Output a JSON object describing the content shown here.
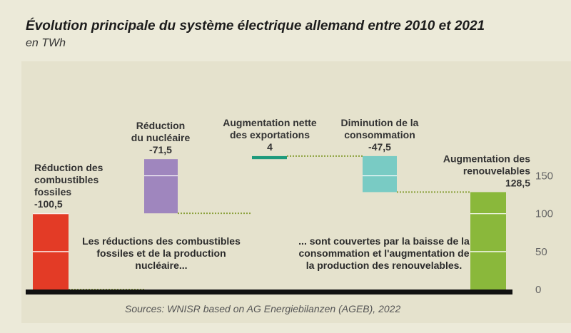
{
  "header": {
    "title": "Évolution principale du système électrique allemand entre 2010 et 2021",
    "subtitle": "en TWh"
  },
  "chart_data": {
    "type": "bar",
    "subtype": "waterfall",
    "unit": "TWh",
    "ylim": [
      0,
      170
    ],
    "yticks": [
      0,
      50,
      100,
      150
    ],
    "grid": false,
    "steps": [
      {
        "label": [
          "Réduction des",
          "combustibles",
          "fossiles",
          "-100,5"
        ],
        "start": 100.5,
        "end": 0,
        "color": "#e33b26"
      },
      {
        "label": [
          "Réduction",
          "du nucléaire",
          "-71,5"
        ],
        "start": 172,
        "end": 100.5,
        "color": "#9f86be"
      },
      {
        "label": [
          "Augmentation nette",
          "des exportations",
          "4"
        ],
        "start": 172,
        "end": 176,
        "color": "#1e9a7c"
      },
      {
        "label": [
          "Diminution de la",
          "consommation",
          "-47,5"
        ],
        "start": 176,
        "end": 128.5,
        "color": "#79cbc4"
      },
      {
        "label": [
          "Augmentation des",
          "renouvelables",
          "128,5"
        ],
        "start": 0,
        "end": 128.5,
        "color": "#8ab83b"
      }
    ],
    "annotations": [
      [
        "Les réductions des combustibles",
        "fossiles et de la production",
        "nucléaire..."
      ],
      [
        "... sont couvertes par la baisse de la",
        "consommation et l'augmentation de",
        "la production des renouvelables."
      ]
    ],
    "source": "Sources: WNISR based on AG Energiebilanzen (AGEB), 2022"
  }
}
